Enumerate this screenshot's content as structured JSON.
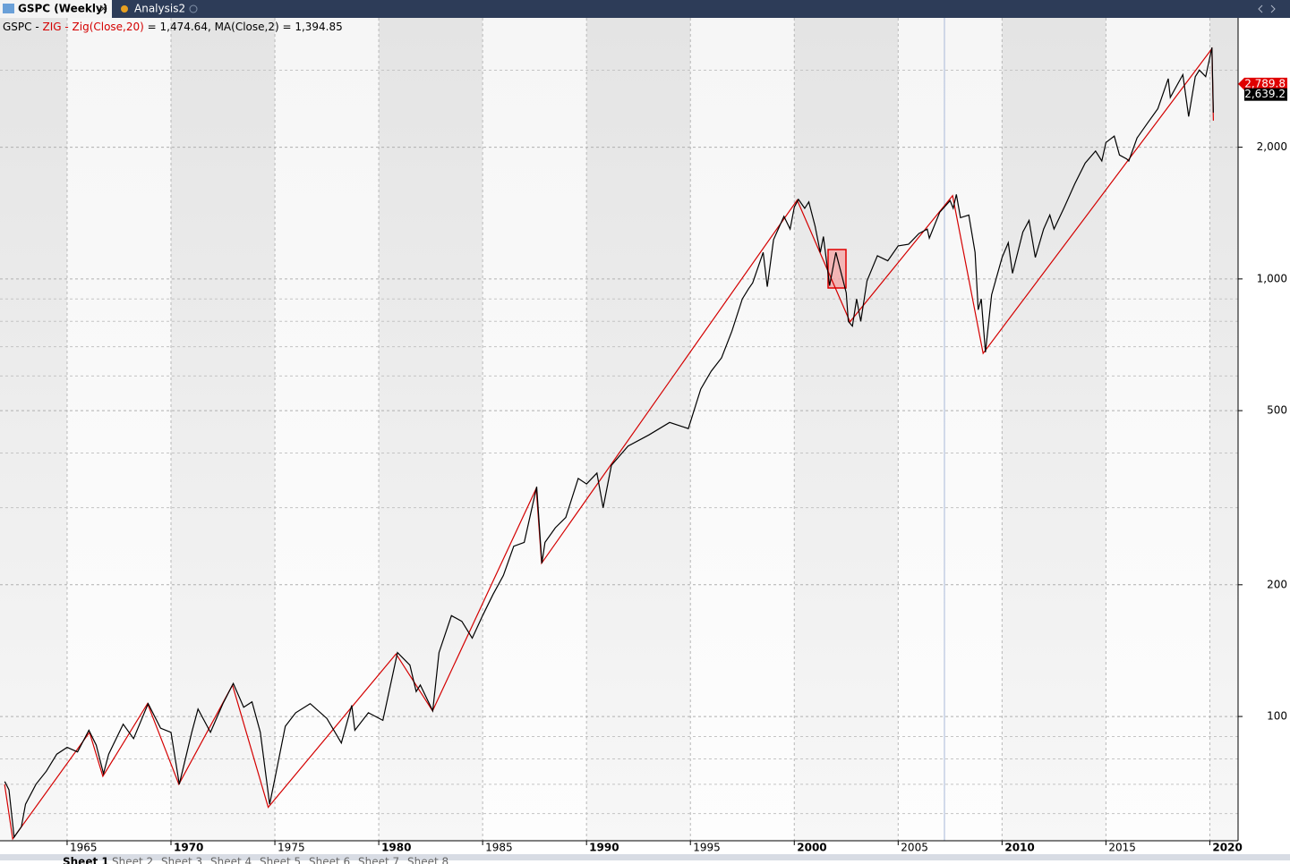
{
  "tabs": [
    "GSPC (Weekly)",
    "Analysis2"
  ],
  "sheets": [
    "Sheet 1",
    "Sheet 2",
    "Sheet 3",
    "Sheet 4",
    "Sheet 5",
    "Sheet 6",
    "Sheet 7",
    "Sheet 8"
  ],
  "chart_data": {
    "type": "line",
    "legend": [
      {
        "text": "GSPC - ",
        "color": "#000000"
      },
      {
        "text": "ZIG - Zig(Close,20)",
        "color": "#d40000"
      },
      {
        "text": " = 1,474.64, MA(Close,2) = 1,394.85",
        "color": "#000000"
      }
    ],
    "log_scale": true,
    "grid": true,
    "xlim": [
      1961.77,
      2021.36
    ],
    "xticks": [
      1965,
      1970,
      1975,
      1980,
      1985,
      1990,
      1995,
      2000,
      2005,
      2010,
      2015,
      2020
    ],
    "xticks_bold": [
      1970,
      1980,
      1990,
      2000,
      2010,
      2020
    ],
    "ylim": [
      52,
      3950
    ],
    "yticks": [
      100,
      200,
      500,
      {
        "value": 1000,
        "label": "1,000"
      },
      {
        "value": 2000,
        "label": "2,000"
      }
    ],
    "yminor": [
      60,
      70,
      80,
      90,
      300,
      400,
      600,
      700,
      800,
      900,
      3000
    ],
    "last_values": [
      {
        "value": 2789.8,
        "label": "2,789.8",
        "color": "#e00000"
      },
      {
        "value": 2639.2,
        "label": "2,639.2",
        "color": "#000000"
      }
    ],
    "series": [
      {
        "color": "#000000",
        "x": [
          1962.0,
          1962.2,
          1962.45,
          1962.8,
          1963.0,
          1963.5,
          1964.0,
          1964.5,
          1965.0,
          1965.5,
          1966.05,
          1966.4,
          1966.75,
          1967.0,
          1967.7,
          1968.2,
          1968.9,
          1969.5,
          1970.0,
          1970.4,
          1971.0,
          1971.3,
          1971.9,
          1972.5,
          1973.0,
          1973.5,
          1973.9,
          1974.3,
          1974.75,
          1975.0,
          1975.5,
          1976.0,
          1976.7,
          1977.5,
          1978.2,
          1978.7,
          1978.85,
          1979.5,
          1980.2,
          1980.9,
          1981.5,
          1981.8,
          1982.0,
          1982.6,
          1982.9,
          1983.5,
          1984.0,
          1984.5,
          1985.0,
          1985.5,
          1986.0,
          1986.5,
          1987.0,
          1987.6,
          1987.85,
          1988.0,
          1988.5,
          1989.0,
          1989.6,
          1990.0,
          1990.5,
          1990.8,
          1991.2,
          1992.0,
          1993.0,
          1994.0,
          1994.9,
          1995.5,
          1996.0,
          1996.5,
          1997.0,
          1997.5,
          1997.8,
          1998.0,
          1998.5,
          1998.7,
          1999.0,
          1999.5,
          1999.8,
          2000.0,
          2000.2,
          2000.5,
          2000.7,
          2001.0,
          2001.25,
          2001.4,
          2001.7,
          2002.0,
          2002.5,
          2002.6,
          2002.8,
          2003.0,
          2003.2,
          2003.5,
          2004.0,
          2004.5,
          2005.0,
          2005.5,
          2006.0,
          2006.4,
          2006.5,
          2007.0,
          2007.5,
          2007.65,
          2007.8,
          2008.0,
          2008.4,
          2008.7,
          2008.85,
          2009.0,
          2009.2,
          2009.5,
          2010.0,
          2010.3,
          2010.5,
          2011.0,
          2011.3,
          2011.6,
          2012.0,
          2012.3,
          2012.5,
          2013.0,
          2013.5,
          2014.0,
          2014.5,
          2014.8,
          2015.0,
          2015.4,
          2015.65,
          2016.0,
          2016.1,
          2016.5,
          2017.0,
          2017.5,
          2018.0,
          2018.1,
          2018.7,
          2018.98,
          2019.3,
          2019.5,
          2019.8,
          2020.1,
          2020.17
        ],
        "values": [
          71,
          68,
          53,
          56,
          63,
          70,
          75,
          82,
          85,
          83,
          93,
          86,
          74,
          82,
          96,
          89,
          107,
          94,
          92,
          70,
          92,
          104,
          92,
          107,
          119,
          105,
          108,
          92,
          63,
          72,
          95,
          102,
          107,
          99,
          87,
          106,
          93,
          102,
          98,
          140,
          131,
          114,
          118,
          103,
          140,
          170,
          165,
          151,
          170,
          190,
          210,
          245,
          250,
          335,
          224,
          250,
          270,
          285,
          350,
          340,
          360,
          300,
          375,
          415,
          440,
          470,
          455,
          560,
          615,
          660,
          760,
          900,
          950,
          980,
          1150,
          960,
          1230,
          1390,
          1300,
          1460,
          1520,
          1450,
          1500,
          1320,
          1150,
          1250,
          965,
          1150,
          930,
          800,
          780,
          900,
          800,
          990,
          1130,
          1100,
          1190,
          1200,
          1270,
          1300,
          1240,
          1420,
          1510,
          1450,
          1560,
          1380,
          1400,
          1150,
          850,
          900,
          680,
          920,
          1120,
          1210,
          1030,
          1280,
          1360,
          1120,
          1300,
          1400,
          1300,
          1460,
          1650,
          1840,
          1960,
          1860,
          2050,
          2120,
          1920,
          1880,
          1860,
          2100,
          2270,
          2450,
          2870,
          2600,
          2930,
          2350,
          2900,
          3000,
          2900,
          3380,
          2400
        ]
      },
      {
        "color": "#d40000",
        "x": [
          1961.99,
          1962.38,
          1966.08,
          1966.72,
          1968.87,
          1970.38,
          1972.96,
          1974.68,
          1980.83,
          1982.59,
          1987.58,
          1987.84,
          2000.14,
          2002.68,
          2007.62,
          2009.09,
          2020.1,
          2020.17
        ],
        "values": [
          70,
          52.5,
          92,
          73,
          107,
          70,
          118,
          62,
          139,
          103,
          332,
          224,
          1514,
          798,
          1550,
          676,
          3360,
          2300
        ]
      }
    ]
  }
}
